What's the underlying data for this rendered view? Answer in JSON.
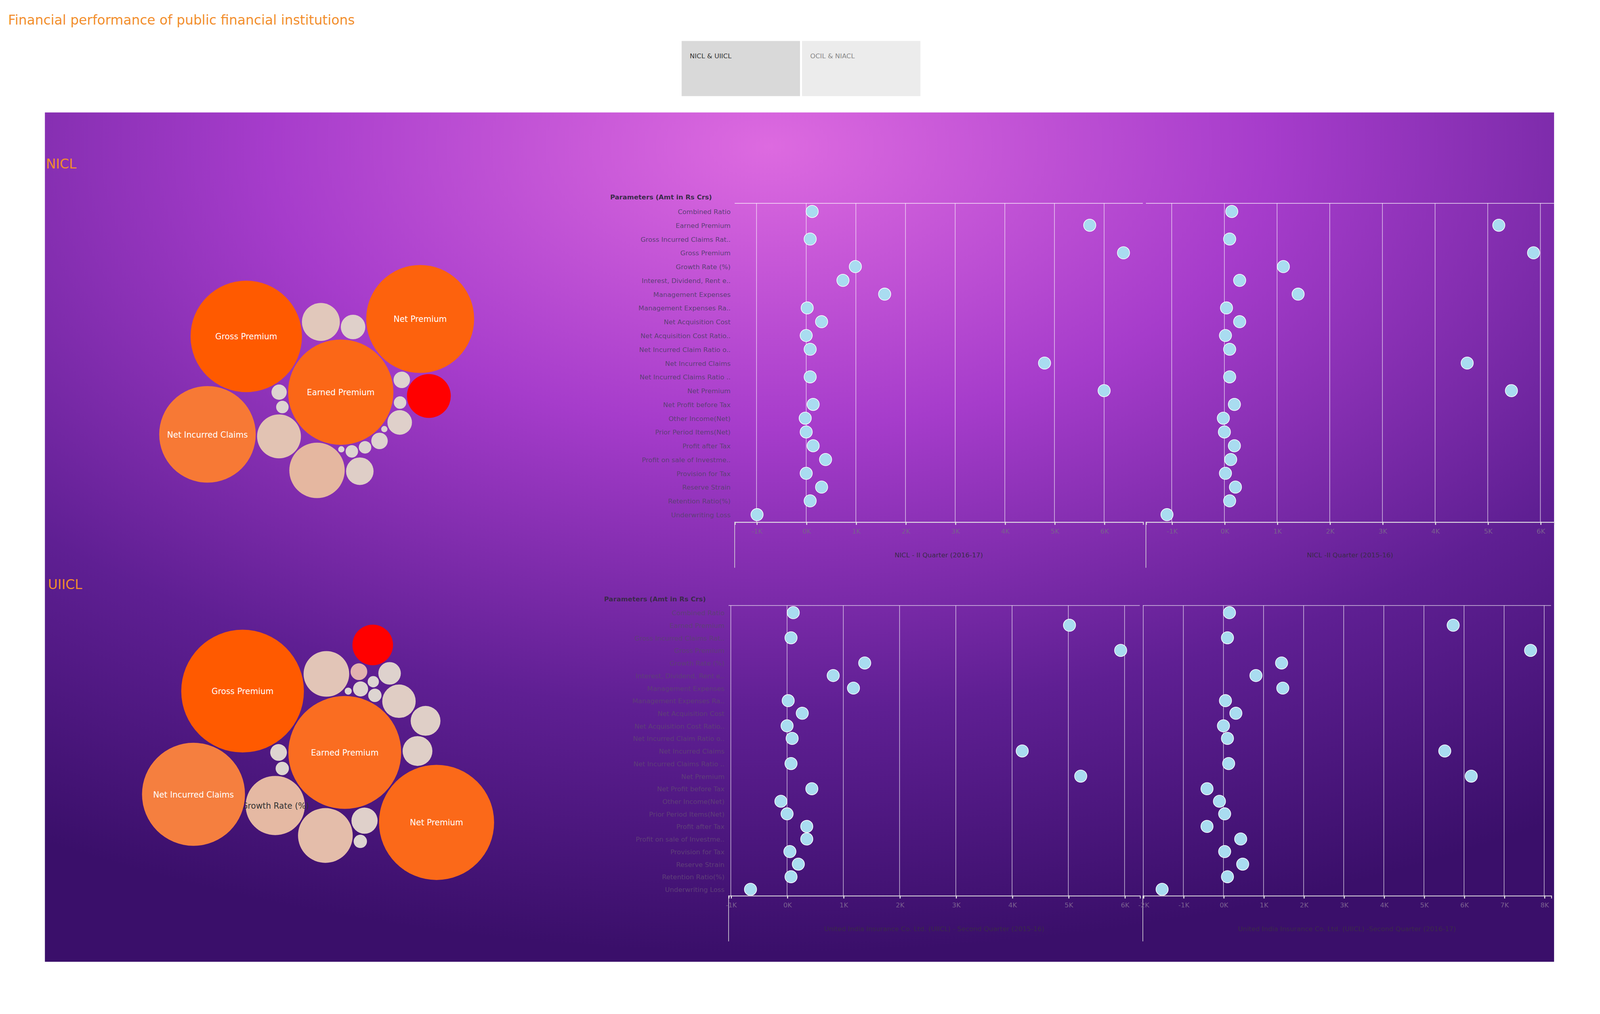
{
  "page": {
    "title": "Financial performance of public financial institutions",
    "tabs": [
      "NICL & UIICL",
      "OCIL & NIACL"
    ]
  },
  "chart_data": [
    {
      "type": "bubble",
      "title": "NICL",
      "categories": [
        null,
        "Earned Premium",
        null,
        "Gross Premium",
        null,
        null,
        null,
        null,
        null,
        null,
        null,
        "Net Incurred Claims",
        null,
        "Net Premium",
        null,
        null,
        null,
        null,
        null,
        null,
        null,
        null,
        null
      ],
      "values": [
        120,
        5710,
        80,
        6390,
        990,
        740,
        1580,
        20,
        310,
        0,
        80,
        4800,
        80,
        6000,
        140,
        -20,
        0,
        140,
        390,
        0,
        310,
        80,
        -990
      ]
    },
    {
      "type": "dot_plot",
      "y_label": "Parameters (Amt in Rs Crs)",
      "color": "#a9dcf0",
      "categories": [
        "Combined Ratio",
        "Earned Premium",
        "Gross Incurred Claims Rat..",
        "Gross Premium",
        "Growth Rate (%)",
        "Interest, Dividend, Rent e..",
        "Management Expenses",
        "Management Expenses Ra..",
        "Net Acquisition Cost",
        "Net Acquisition Cost Ratio..",
        "Net Incurred Claim Ratio o..",
        "Net Incurred Claims",
        "Net Incurred Claims Ratio ..",
        "Net Premium",
        "Net Profit before Tax",
        "Other Income(Net)",
        "Prior Period Items(Net)",
        "Profit after Tax",
        "Profit on sale of Investme..",
        "Provision for Tax",
        "Reserve Strain",
        "Retention Ratio(%)",
        "Underwriting Loss"
      ],
      "series": [
        {
          "name": "NICL - II Quarter (2016-17)",
          "values": [
            120,
            5710,
            80,
            6390,
            990,
            740,
            1580,
            20,
            310,
            0,
            80,
            4800,
            80,
            6000,
            140,
            -20,
            0,
            140,
            390,
            0,
            310,
            80,
            -990
          ],
          "xlim": [
            -1440,
            6780
          ],
          "xticks": [
            {
              "value": -1000,
              "label": "-1K"
            },
            {
              "value": 0,
              "label": "0K"
            },
            {
              "value": 1000,
              "label": "1K"
            },
            {
              "value": 2000,
              "label": "2K"
            },
            {
              "value": 3000,
              "label": "3K"
            },
            {
              "value": 4000,
              "label": "4K"
            },
            {
              "value": 5000,
              "label": "5K"
            },
            {
              "value": 6000,
              "label": "6K"
            }
          ]
        },
        {
          "name": "NICL -II Quarter (2015-16)",
          "values": [
            140,
            5210,
            100,
            5870,
            1120,
            290,
            1400,
            40,
            290,
            20,
            100,
            4610,
            100,
            5450,
            190,
            -20,
            0,
            190,
            120,
            20,
            210,
            100,
            -1090
          ],
          "xlim": [
            -1490,
            6260
          ],
          "xticks": [
            {
              "value": -1000,
              "label": "-1K"
            },
            {
              "value": 0,
              "label": "0K"
            },
            {
              "value": 1000,
              "label": "1K"
            },
            {
              "value": 2000,
              "label": "2K"
            },
            {
              "value": 3000,
              "label": "3K"
            },
            {
              "value": 4000,
              "label": "4K"
            },
            {
              "value": 5000,
              "label": "5K"
            },
            {
              "value": 6000,
              "label": "6K"
            }
          ]
        }
      ]
    },
    {
      "type": "bubble",
      "title": "UIICL",
      "categories": [
        null,
        "Earned Premium",
        null,
        "Gross Premium",
        "Growth Rate (%)",
        null,
        null,
        null,
        null,
        null,
        null,
        "Net Incurred Claims",
        null,
        "Net Premium",
        null,
        null,
        null,
        null,
        null,
        null,
        null,
        null,
        null
      ],
      "values": [
        110,
        5020,
        70,
        5930,
        1380,
        820,
        1180,
        20,
        270,
        0,
        90,
        4180,
        70,
        5220,
        440,
        -110,
        0,
        350,
        350,
        50,
        200,
        70,
        -650
      ]
    },
    {
      "type": "dot_plot",
      "y_label": "Parameters (Amt in Rs Crs)",
      "color": "#a9dcf0",
      "categories": [
        "Combined Ratio",
        "Earned Premium",
        "Gross Incurred Claims Rat..",
        "Gross Premium",
        "Growth Rate (%)",
        "Interest, Dividend, Rent e..",
        "Management Expenses",
        "Management Expenses Ra..",
        "Net Acquisition Cost",
        "Net Acquisition Cost Ratio..",
        "Net Incurred Claim Ratio o..",
        "Net Incurred Claims",
        "Net Incurred Claims Ratio ..",
        "Net Premium",
        "Net Profit before Tax",
        "Other Income(Net)",
        "Prior Period Items(Net)",
        "Profit after Tax",
        "Profit on sale of Investme..",
        "Provision for Tax",
        "Reserve Strain",
        "Retention Ratio(%)",
        "Underwriting Loss"
      ],
      "series": [
        {
          "name": "United India Insurance Co. Ltd. (UIICL) - Second Quarter (2015-16)",
          "values": [
            110,
            5020,
            70,
            5930,
            1380,
            820,
            1180,
            20,
            270,
            0,
            90,
            4180,
            70,
            5220,
            440,
            -110,
            0,
            350,
            350,
            50,
            200,
            70,
            -650
          ],
          "xlim": [
            -1040,
            6270
          ],
          "xticks": [
            {
              "value": -1000,
              "label": "-1K"
            },
            {
              "value": 0,
              "label": "0K"
            },
            {
              "value": 1000,
              "label": "1K"
            },
            {
              "value": 2000,
              "label": "2K"
            },
            {
              "value": 3000,
              "label": "3K"
            },
            {
              "value": 4000,
              "label": "4K"
            },
            {
              "value": 5000,
              "label": "5K"
            },
            {
              "value": 6000,
              "label": "6K"
            }
          ]
        },
        {
          "name": "United India Insurance Co. Ltd. (UIICL) -Second Quarter (2016-17)",
          "values": [
            150,
            5730,
            100,
            7660,
            1450,
            810,
            1480,
            50,
            310,
            0,
            100,
            5520,
            130,
            6180,
            -410,
            -100,
            30,
            -410,
            430,
            30,
            480,
            100,
            -1530
          ],
          "xlim": [
            -2010,
            8170
          ],
          "xticks": [
            {
              "value": -2000,
              "label": "-2K"
            },
            {
              "value": -1000,
              "label": "-1K"
            },
            {
              "value": 0,
              "label": "0K"
            },
            {
              "value": 1000,
              "label": "1K"
            },
            {
              "value": 2000,
              "label": "2K"
            },
            {
              "value": 3000,
              "label": "3K"
            },
            {
              "value": 4000,
              "label": "4K"
            },
            {
              "value": 5000,
              "label": "5K"
            },
            {
              "value": 6000,
              "label": "6K"
            },
            {
              "value": 7000,
              "label": "7K"
            },
            {
              "value": 8000,
              "label": "8K"
            }
          ]
        }
      ]
    }
  ]
}
